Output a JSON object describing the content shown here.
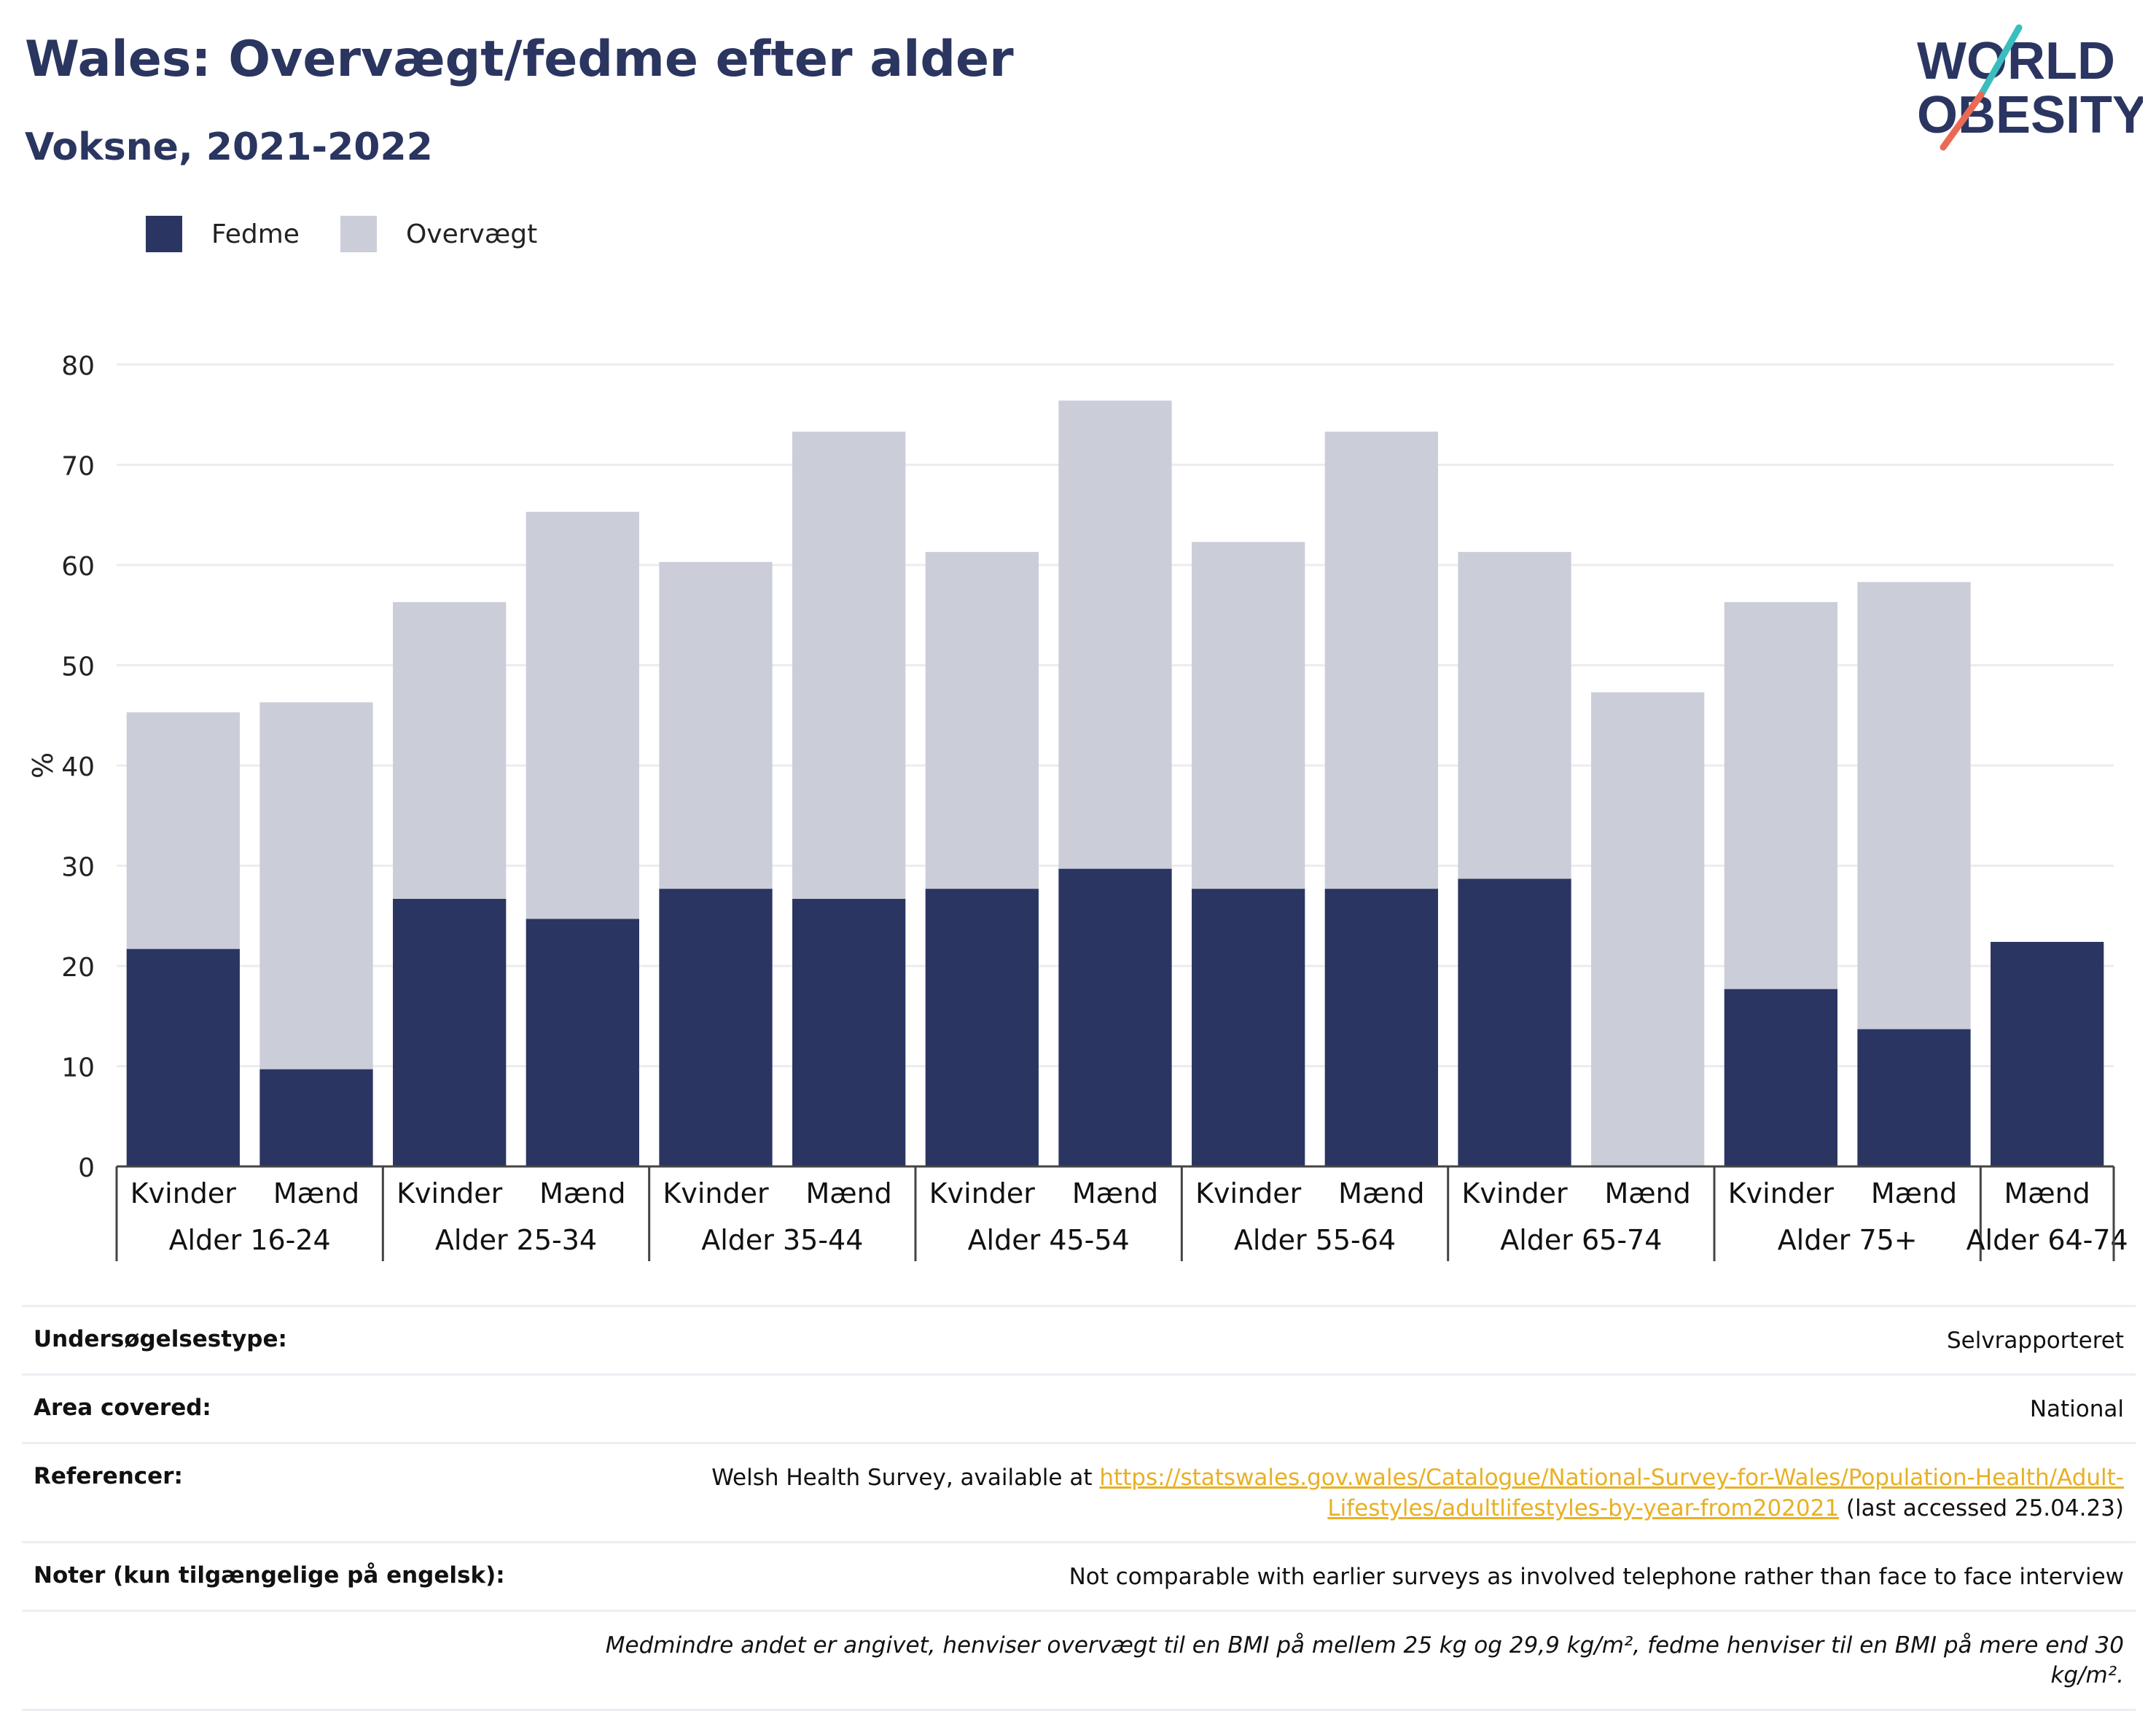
{
  "header": {
    "title": "Wales: Overvægt/fedme efter alder",
    "subtitle": "Voksne, 2021-2022",
    "logo_line1": "WORLD",
    "logo_line2": "OBESITY"
  },
  "colors": {
    "obese": "#2a3561",
    "overweight": "#cbcdd9",
    "title": "#2a3560",
    "link": "#e8b024",
    "logo_teal": "#3bbdbf",
    "logo_coral": "#ea6a55"
  },
  "legend": {
    "position": "top-left",
    "items": [
      {
        "label": "Fedme",
        "color": "#2a3561"
      },
      {
        "label": "Overvægt",
        "color": "#cbcdd9"
      }
    ]
  },
  "chart_data": {
    "type": "bar",
    "stacked": true,
    "ylabel": "%",
    "ylim": [
      0,
      80
    ],
    "yticks": [
      0,
      10,
      20,
      30,
      40,
      50,
      60,
      70,
      80
    ],
    "grid": true,
    "groups": [
      {
        "label": "Alder 16-24",
        "categories": [
          "Kvinder",
          "Mænd"
        ]
      },
      {
        "label": "Alder 25-34",
        "categories": [
          "Kvinder",
          "Mænd"
        ]
      },
      {
        "label": "Alder 35-44",
        "categories": [
          "Kvinder",
          "Mænd"
        ]
      },
      {
        "label": "Alder 45-54",
        "categories": [
          "Kvinder",
          "Mænd"
        ]
      },
      {
        "label": "Alder 55-64",
        "categories": [
          "Kvinder",
          "Mænd"
        ]
      },
      {
        "label": "Alder 65-74",
        "categories": [
          "Kvinder",
          "Mænd"
        ]
      },
      {
        "label": "Alder 75+",
        "categories": [
          "Kvinder",
          "Mænd"
        ]
      },
      {
        "label": "Alder 64-74",
        "categories": [
          "Mænd"
        ]
      }
    ],
    "series": [
      {
        "name": "Fedme",
        "values": [
          21.7,
          9.7,
          26.7,
          24.7,
          27.7,
          26.7,
          27.7,
          29.7,
          27.7,
          27.7,
          28.7,
          0,
          17.7,
          13.7,
          22.4
        ]
      },
      {
        "name": "Overvægt",
        "values": [
          23.6,
          36.6,
          29.6,
          40.6,
          32.6,
          46.6,
          33.6,
          46.7,
          34.6,
          45.6,
          32.6,
          47.3,
          38.6,
          44.6,
          0
        ]
      }
    ]
  },
  "meta": {
    "rows": [
      {
        "key": "Undersøgelsestype:",
        "value": "Selvrapporteret"
      },
      {
        "key": "Area covered:",
        "value": "National"
      },
      {
        "key": "Referencer:",
        "value_prefix": "Welsh Health Survey, available at ",
        "link": "https://statswales.gov.wales/Catalogue/National-Survey-for-Wales/Population-Health/Adult-Lifestyles/adultlifestyles-by-year-from202021",
        "value_suffix": " (last accessed 25.04.23)"
      },
      {
        "key": "Noter (kun tilgængelige på engelsk):",
        "value": "Not comparable with earlier surveys as involved telephone rather than face to face interview"
      }
    ],
    "footnote": "Medmindre andet er angivet, henviser overvægt til en BMI på mellem 25 kg og 29,9 kg/m², fedme henviser til en BMI på mere end 30 kg/m²."
  }
}
